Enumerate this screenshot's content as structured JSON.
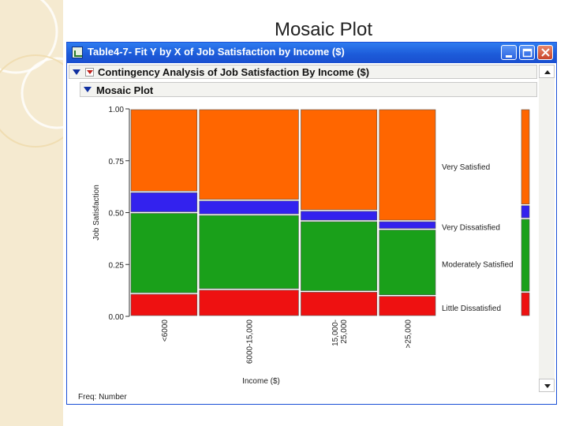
{
  "slide": {
    "title": "Mosaic Plot"
  },
  "window": {
    "title": "Table4-7- Fit Y by X of Job Satisfaction by Income ($)",
    "outline_title": "Contingency Analysis of Job Satisfaction By Income ($)",
    "section_title": "Mosaic Plot",
    "status_text": "Freq: Number"
  },
  "colors": {
    "titlebar": "#1c5ad8",
    "very_satisfied": "#ff6600",
    "very_dissatisfied": "#3322ee",
    "moderately_satisfied": "#1aa01a",
    "little_dissatisfied": "#ee1111"
  },
  "icons": [
    "app-icon",
    "disclosure-triangle-icon",
    "popup-menu-icon",
    "minimize-icon",
    "maximize-icon",
    "close-icon",
    "scroll-up-icon",
    "scroll-down-icon"
  ],
  "chart_data": {
    "type": "mosaic",
    "xlabel": "Income ($)",
    "ylabel": "Job Satisfaction",
    "ylim": [
      0,
      1
    ],
    "yticks": [
      "0.00",
      "0.25",
      "0.50",
      "0.75",
      "1.00"
    ],
    "categories": [
      "<6000",
      "6000-15,000",
      "15,000-\n25,000",
      ">25,000"
    ],
    "category_widths": [
      0.2,
      0.3,
      0.23,
      0.17
    ],
    "series": [
      {
        "name": "Little Dissatisfied",
        "color": "#ee1111",
        "values": [
          0.11,
          0.13,
          0.12,
          0.1
        ]
      },
      {
        "name": "Moderately Satisfied",
        "color": "#1aa01a",
        "values": [
          0.39,
          0.36,
          0.34,
          0.32
        ]
      },
      {
        "name": "Very Dissatisfied",
        "color": "#3322ee",
        "values": [
          0.1,
          0.07,
          0.05,
          0.04
        ]
      },
      {
        "name": "Very Satisfied",
        "color": "#ff6600",
        "values": [
          0.4,
          0.44,
          0.49,
          0.54
        ]
      }
    ]
  }
}
